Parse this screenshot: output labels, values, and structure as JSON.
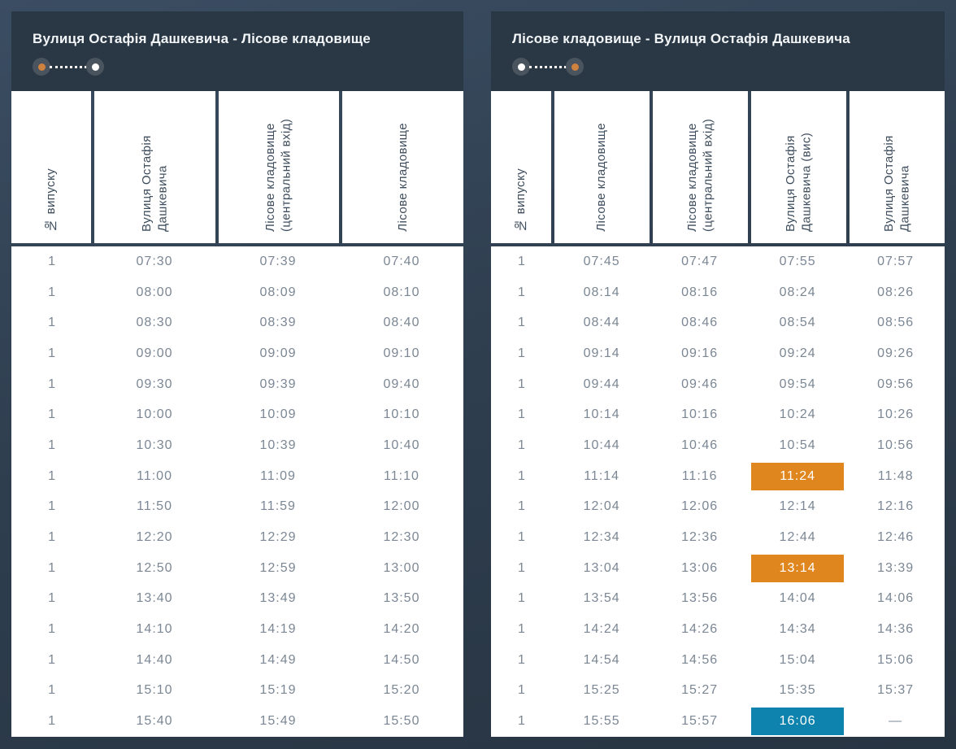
{
  "colors": {
    "orange": "#e0861f",
    "blue": "#0d83ad",
    "dot_orange": "#cf8140",
    "dot_white": "#ffffff"
  },
  "panels": [
    {
      "title": "Вулиця Остафія Дашкевича - Лісове кладовище",
      "route_indicator": {
        "start": "dot_orange",
        "end": "dot_white"
      },
      "columns": [
        "№ випуску",
        "Вулиця Остафія Дашкевича",
        "Лісове кладовище (центральний вхід)",
        "Лісове кладовище"
      ],
      "rows": [
        [
          "1",
          "07:30",
          "07:39",
          "07:40"
        ],
        [
          "1",
          "08:00",
          "08:09",
          "08:10"
        ],
        [
          "1",
          "08:30",
          "08:39",
          "08:40"
        ],
        [
          "1",
          "09:00",
          "09:09",
          "09:10"
        ],
        [
          "1",
          "09:30",
          "09:39",
          "09:40"
        ],
        [
          "1",
          "10:00",
          "10:09",
          "10:10"
        ],
        [
          "1",
          "10:30",
          "10:39",
          "10:40"
        ],
        [
          "1",
          "11:00",
          "11:09",
          "11:10"
        ],
        [
          "1",
          "11:50",
          "11:59",
          "12:00"
        ],
        [
          "1",
          "12:20",
          "12:29",
          "12:30"
        ],
        [
          "1",
          "12:50",
          "12:59",
          "13:00"
        ],
        [
          "1",
          "13:40",
          "13:49",
          "13:50"
        ],
        [
          "1",
          "14:10",
          "14:19",
          "14:20"
        ],
        [
          "1",
          "14:40",
          "14:49",
          "14:50"
        ],
        [
          "1",
          "15:10",
          "15:19",
          "15:20"
        ],
        [
          "1",
          "15:40",
          "15:49",
          "15:50"
        ]
      ],
      "highlights": []
    },
    {
      "title": "Лісове кладовище - Вулиця Остафія Дашкевича",
      "route_indicator": {
        "start": "dot_white",
        "end": "dot_orange"
      },
      "columns": [
        "№ випуску",
        "Лісове кладовище",
        "Лісове кладовище (центральний вхід)",
        "Вулиця Остафія Дашкевича (вис)",
        "Вулиця Остафія Дашкевича"
      ],
      "rows": [
        [
          "1",
          "07:45",
          "07:47",
          "07:55",
          "07:57"
        ],
        [
          "1",
          "08:14",
          "08:16",
          "08:24",
          "08:26"
        ],
        [
          "1",
          "08:44",
          "08:46",
          "08:54",
          "08:56"
        ],
        [
          "1",
          "09:14",
          "09:16",
          "09:24",
          "09:26"
        ],
        [
          "1",
          "09:44",
          "09:46",
          "09:54",
          "09:56"
        ],
        [
          "1",
          "10:14",
          "10:16",
          "10:24",
          "10:26"
        ],
        [
          "1",
          "10:44",
          "10:46",
          "10:54",
          "10:56"
        ],
        [
          "1",
          "11:14",
          "11:16",
          "11:24",
          "11:48"
        ],
        [
          "1",
          "12:04",
          "12:06",
          "12:14",
          "12:16"
        ],
        [
          "1",
          "12:34",
          "12:36",
          "12:44",
          "12:46"
        ],
        [
          "1",
          "13:04",
          "13:06",
          "13:14",
          "13:39"
        ],
        [
          "1",
          "13:54",
          "13:56",
          "14:04",
          "14:06"
        ],
        [
          "1",
          "14:24",
          "14:26",
          "14:34",
          "14:36"
        ],
        [
          "1",
          "14:54",
          "14:56",
          "15:04",
          "15:06"
        ],
        [
          "1",
          "15:25",
          "15:27",
          "15:35",
          "15:37"
        ],
        [
          "1",
          "15:55",
          "15:57",
          "16:06",
          "—"
        ]
      ],
      "highlights": [
        {
          "row": 7,
          "col": 3,
          "color": "orange"
        },
        {
          "row": 10,
          "col": 3,
          "color": "orange"
        },
        {
          "row": 15,
          "col": 3,
          "color": "blue"
        }
      ]
    }
  ]
}
